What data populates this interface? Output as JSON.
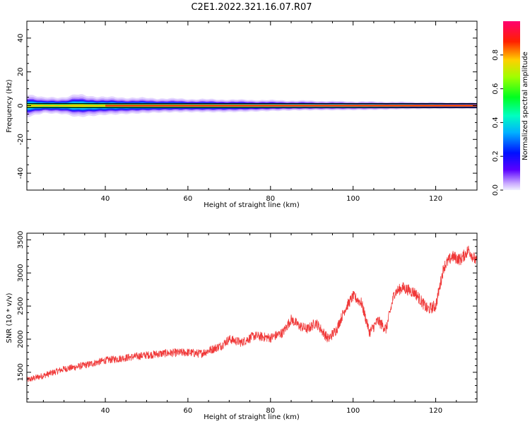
{
  "chart_data": [
    {
      "type": "heatmap",
      "title": "C2E1.2022.321.16.07.R07",
      "xlabel": "Height of straight line (km)",
      "ylabel": "Frequency (Hz)",
      "xlim": [
        21,
        130
      ],
      "ylim": [
        -50,
        50
      ],
      "xticks": [
        40,
        60,
        80,
        100,
        120
      ],
      "yticks": [
        40,
        20,
        0,
        -20,
        -40
      ],
      "colorbar": {
        "label": "Normalized spectral amplitude",
        "range": [
          0,
          1
        ],
        "ticks": [
          "0.0",
          "0.2",
          "0.4",
          "0.6",
          "0.8"
        ],
        "colormap": "gist_rainbow_r"
      },
      "dominant_frequency_hz": 0,
      "bandwidth_profile": [
        {
          "x": 21,
          "half_width_hz": 4.0
        },
        {
          "x": 25,
          "half_width_hz": 2.6
        },
        {
          "x": 30,
          "half_width_hz": 2.8
        },
        {
          "x": 33,
          "half_width_hz": 3.6
        },
        {
          "x": 40,
          "half_width_hz": 2.8
        },
        {
          "x": 60,
          "half_width_hz": 2.2
        },
        {
          "x": 80,
          "half_width_hz": 1.8
        },
        {
          "x": 100,
          "half_width_hz": 1.4
        },
        {
          "x": 130,
          "half_width_hz": 1.0
        }
      ]
    },
    {
      "type": "line",
      "xlabel": "Height of straight line (km)",
      "ylabel": "SNR (10 * v/v)",
      "xlim": [
        21,
        130
      ],
      "ylim": [
        1050,
        3600
      ],
      "xticks": [
        40,
        60,
        80,
        100,
        120
      ],
      "yticks": [
        1500,
        2000,
        2500,
        3000,
        3500
      ],
      "color": "#f03838",
      "noise_amplitude": 80,
      "x": [
        21,
        25,
        30,
        33,
        36,
        40,
        45,
        50,
        55,
        60,
        63,
        66,
        68,
        70,
        73,
        76,
        80,
        83,
        85,
        87,
        89,
        91,
        94,
        96,
        98,
        100,
        102,
        104,
        106,
        108,
        110,
        112,
        115,
        118,
        120,
        122,
        124,
        126,
        128,
        130
      ],
      "y": [
        1380,
        1450,
        1550,
        1580,
        1620,
        1680,
        1720,
        1760,
        1790,
        1800,
        1780,
        1850,
        1900,
        2000,
        1950,
        2050,
        2020,
        2100,
        2300,
        2200,
        2150,
        2250,
        2000,
        2150,
        2450,
        2650,
        2550,
        2100,
        2280,
        2150,
        2700,
        2780,
        2700,
        2450,
        2500,
        3100,
        3250,
        3200,
        3350,
        3150
      ]
    }
  ]
}
